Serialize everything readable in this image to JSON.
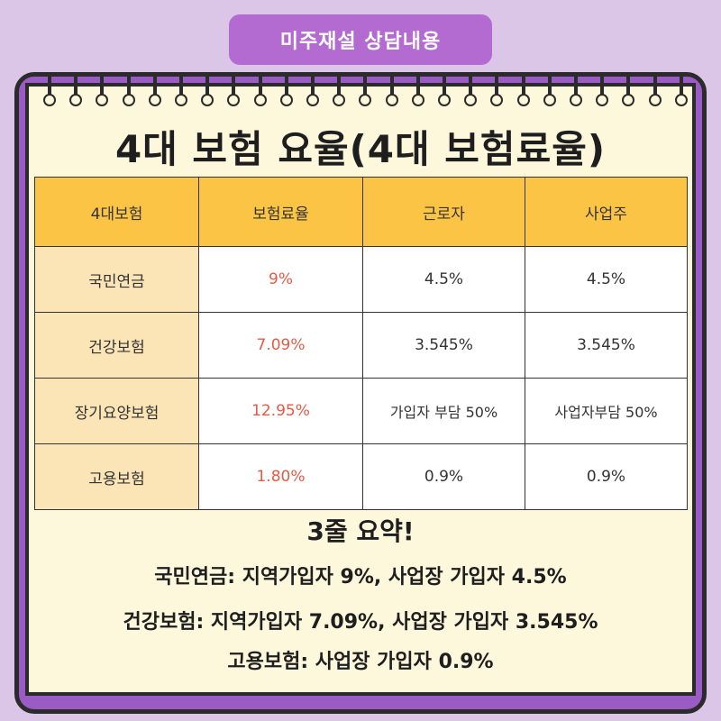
{
  "badge": "미주재설 상담내용",
  "title": "4대 보험 요율(4대 보험료율)",
  "table": {
    "headers": [
      "4대보험",
      "보험료율",
      "근로자",
      "사업주"
    ],
    "rows": [
      {
        "name": "국민연금",
        "rate": "9%",
        "worker": "4.5%",
        "employer": "4.5%"
      },
      {
        "name": "건강보험",
        "rate": "7.09%",
        "worker": "3.545%",
        "employer": "3.545%"
      },
      {
        "name": "장기요양보험",
        "rate": "12.95%",
        "worker": "가입자 부담 50%",
        "employer": "사업자부담 50%"
      },
      {
        "name": "고용보험",
        "rate": "1.80%",
        "worker": "0.9%",
        "employer": "0.9%"
      }
    ]
  },
  "summary": {
    "title": "3줄 요약!",
    "lines": [
      "국민연금: 지역가입자 9%, 사업장 가입자 4.5%",
      "건강보험: 지역가입자 7.09%, 사업장 가입자 3.545%",
      "고용보험: 사업장 가입자 0.9%"
    ]
  },
  "colors": {
    "background": "#dcc6e8",
    "badge": "#b36ad1",
    "frame": "#9a5bc4",
    "card": "#fdf7dc",
    "header_fill": "#fbc444",
    "row_head_fill": "#fbe5b6",
    "rate_text": "#e25b45"
  }
}
